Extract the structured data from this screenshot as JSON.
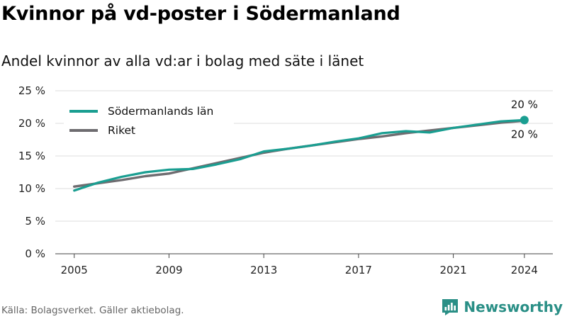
{
  "title": "Kvinnor på vd-poster i Södermanland",
  "subtitle": "Andel kvinnor av alla vd:ar i bolag med säte i länet",
  "source": "Källa: Bolagsverket. Gäller aktiebolag.",
  "brand": {
    "name": "Newsworthy",
    "icon": "bar-chart-logo-icon",
    "color": "#2a8f86"
  },
  "chart_data": {
    "type": "line",
    "x_ticks": [
      2005,
      2009,
      2013,
      2017,
      2021,
      2024
    ],
    "x_range": [
      2004.2,
      2025.2
    ],
    "ylim": [
      0,
      25
    ],
    "y_ticks": [
      0,
      5,
      10,
      15,
      20,
      25
    ],
    "y_tick_labels": [
      "0 %",
      "5 %",
      "10 %",
      "15 %",
      "20 %",
      "25 %"
    ],
    "grid": true,
    "legend_position": "top-left",
    "series": [
      {
        "name": "Södermanlands län",
        "color": "#1a9e91",
        "x": [
          2005,
          2006,
          2007,
          2008,
          2009,
          2010,
          2011,
          2012,
          2013,
          2014,
          2015,
          2016,
          2017,
          2018,
          2019,
          2020,
          2021,
          2022,
          2023,
          2024
        ],
        "y": [
          9.7,
          10.9,
          11.8,
          12.5,
          12.9,
          13.0,
          13.7,
          14.5,
          15.7,
          16.1,
          16.6,
          17.2,
          17.7,
          18.5,
          18.8,
          18.6,
          19.3,
          19.8,
          20.3,
          20.5
        ],
        "end_label": "20 %"
      },
      {
        "name": "Riket",
        "color": "#6e6c70",
        "x": [
          2005,
          2006,
          2007,
          2008,
          2009,
          2010,
          2011,
          2012,
          2013,
          2014,
          2015,
          2016,
          2017,
          2018,
          2019,
          2020,
          2021,
          2022,
          2023,
          2024
        ],
        "y": [
          10.3,
          10.8,
          11.3,
          11.9,
          12.3,
          13.1,
          13.9,
          14.7,
          15.5,
          16.1,
          16.6,
          17.1,
          17.6,
          18.0,
          18.5,
          18.9,
          19.3,
          19.7,
          20.1,
          20.4
        ],
        "end_label": "20 %"
      }
    ]
  }
}
